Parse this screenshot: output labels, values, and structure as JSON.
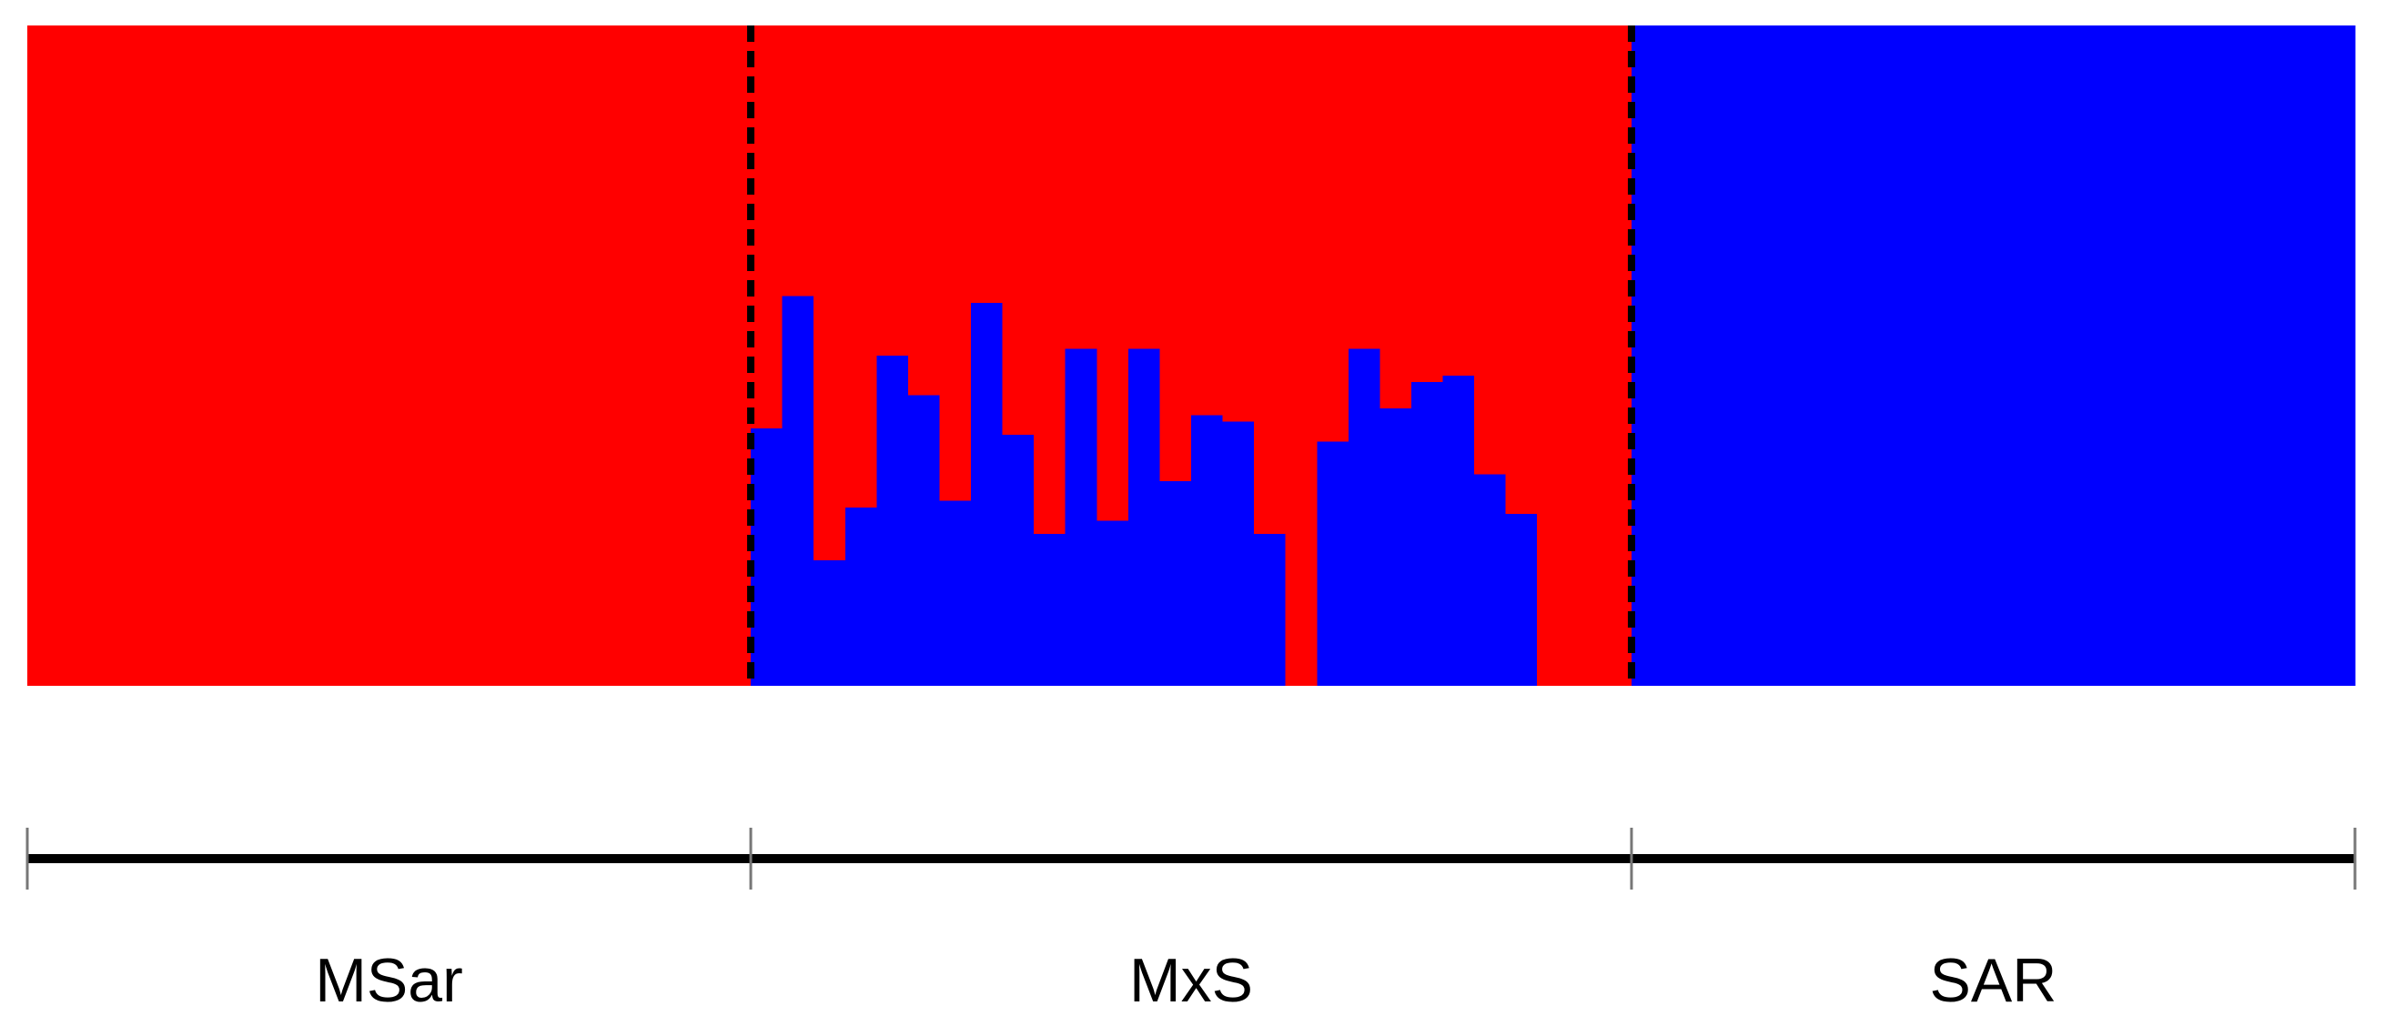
{
  "chart_data": {
    "type": "structure",
    "categories": [
      null,
      null,
      null,
      null,
      null,
      null,
      null,
      null,
      null,
      null,
      null,
      null,
      null,
      null,
      null,
      null,
      null,
      null,
      null,
      null,
      null,
      null,
      null,
      null,
      null,
      null,
      null,
      null,
      null,
      null,
      null,
      null,
      null,
      null,
      null,
      null,
      null,
      null,
      null,
      null,
      null,
      null,
      null,
      null,
      null,
      null,
      null,
      null,
      null,
      null,
      null,
      null,
      null,
      null,
      null,
      null,
      null,
      null,
      null,
      null,
      null,
      null,
      null,
      null,
      null,
      null,
      null,
      null,
      null,
      null,
      null,
      null,
      null,
      null
    ],
    "groups": [
      {
        "label": "MSar",
        "size": 23
      },
      {
        "label": "MxS",
        "size": 28
      },
      {
        "label": "SAR",
        "size": 23
      }
    ],
    "ylim": [
      0,
      1
    ],
    "series": [
      {
        "color": "#0000ff",
        "values": [
          0,
          0,
          0,
          0,
          0,
          0,
          0,
          0,
          0,
          0,
          0,
          0,
          0,
          0,
          0,
          0,
          0,
          0,
          0,
          0,
          0,
          0,
          0,
          0.39,
          0.59,
          0.19,
          0.27,
          0.5,
          0.44,
          0.28,
          0.58,
          0.38,
          0.23,
          0.51,
          0.25,
          0.51,
          0.31,
          0.41,
          0.4,
          0.23,
          0,
          0.37,
          0.51,
          0.42,
          0.46,
          0.47,
          0.32,
          0.26,
          0,
          0,
          0,
          1,
          1,
          1,
          1,
          1,
          1,
          1,
          1,
          1,
          1,
          1,
          1,
          1,
          1,
          1,
          1,
          1,
          1,
          1,
          1,
          1,
          1,
          1
        ]
      },
      {
        "color": "#ff0000",
        "values": [
          1,
          1,
          1,
          1,
          1,
          1,
          1,
          1,
          1,
          1,
          1,
          1,
          1,
          1,
          1,
          1,
          1,
          1,
          1,
          1,
          1,
          1,
          1,
          0.61,
          0.41,
          0.81,
          0.73,
          0.5,
          0.56,
          0.72,
          0.42,
          0.62,
          0.77,
          0.49,
          0.75,
          0.49,
          0.69,
          0.59,
          0.6,
          0.77,
          1,
          0.63,
          0.49,
          0.58,
          0.54,
          0.53,
          0.68,
          0.74,
          1,
          1,
          1,
          0,
          0,
          0,
          0,
          0,
          0,
          0,
          0,
          0,
          0,
          0,
          0,
          0,
          0,
          0,
          0,
          0,
          0,
          0,
          0,
          0,
          0,
          0
        ]
      }
    ]
  }
}
